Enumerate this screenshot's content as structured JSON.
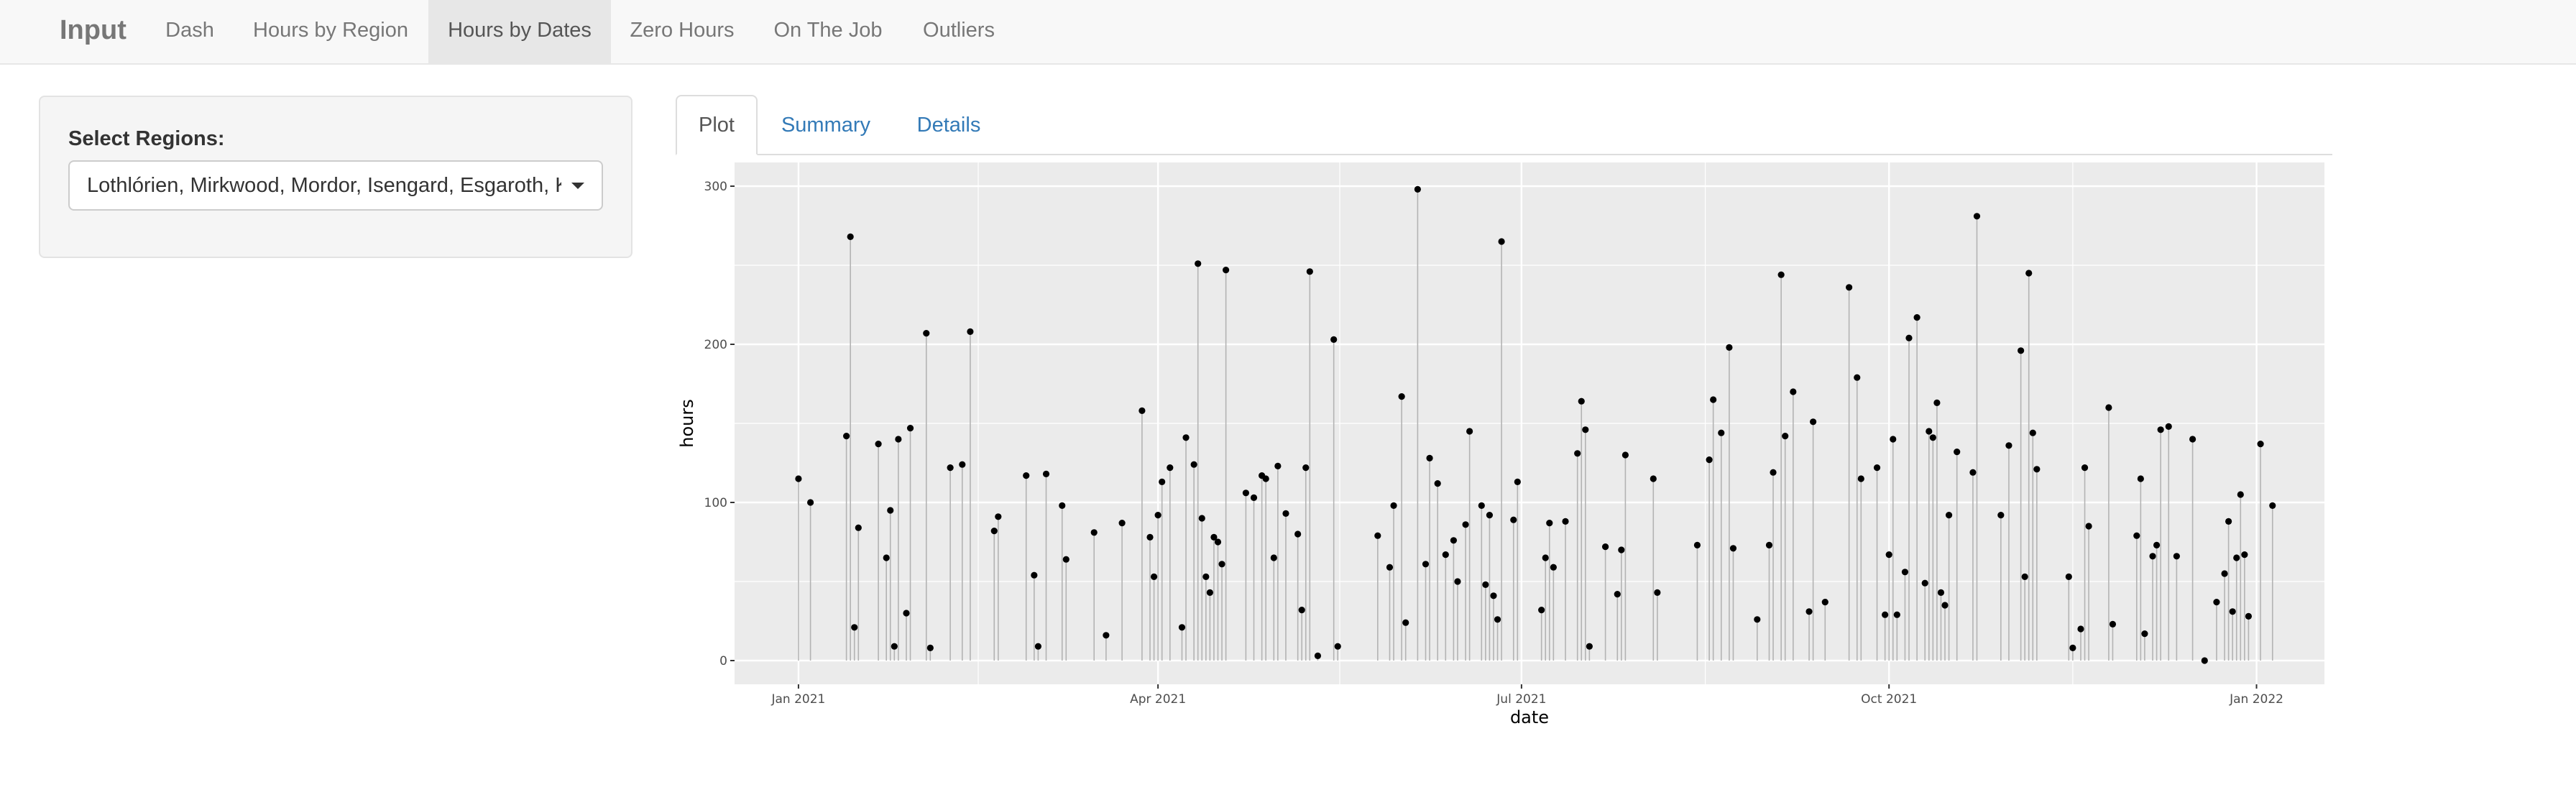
{
  "navbar": {
    "brand": "Input",
    "items": [
      {
        "label": "Dash",
        "active": false
      },
      {
        "label": "Hours by Region",
        "active": false
      },
      {
        "label": "Hours by Dates",
        "active": true
      },
      {
        "label": "Zero Hours",
        "active": false
      },
      {
        "label": "On The Job",
        "active": false
      },
      {
        "label": "Outliers",
        "active": false
      }
    ]
  },
  "sidebar": {
    "label": "Select Regions:",
    "selected": "Lothlórien, Mirkwood, Mordor, Isengard, Esgaroth, Kh"
  },
  "tabs": [
    {
      "label": "Plot",
      "active": true
    },
    {
      "label": "Summary",
      "active": false
    },
    {
      "label": "Details",
      "active": false
    }
  ],
  "colors": {
    "panel_bg": "#ebebeb",
    "grid": "#ffffff",
    "stem": "#b3b3b3",
    "point": "#000000",
    "link": "#337ab7"
  },
  "chart_data": {
    "type": "scatter",
    "style": "lollipop",
    "xlabel": "date",
    "ylabel": "hours",
    "xlim": [
      "2020-12-16",
      "2022-01-18"
    ],
    "ylim": [
      -15,
      315
    ],
    "xticks": [
      {
        "date": "2021-01-01",
        "label": "Jan 2021"
      },
      {
        "date": "2021-04-01",
        "label": "Apr 2021"
      },
      {
        "date": "2021-07-01",
        "label": "Jul 2021"
      },
      {
        "date": "2021-10-01",
        "label": "Oct 2021"
      },
      {
        "date": "2022-01-01",
        "label": "Jan 2022"
      }
    ],
    "yticks": [
      0,
      100,
      200,
      300
    ],
    "grid": true,
    "points": [
      [
        "2021-01-01",
        115
      ],
      [
        "2021-01-04",
        100
      ],
      [
        "2021-01-13",
        142
      ],
      [
        "2021-01-14",
        268
      ],
      [
        "2021-01-15",
        21
      ],
      [
        "2021-01-16",
        84
      ],
      [
        "2021-01-21",
        137
      ],
      [
        "2021-01-23",
        65
      ],
      [
        "2021-01-24",
        95
      ],
      [
        "2021-01-25",
        9
      ],
      [
        "2021-01-26",
        140
      ],
      [
        "2021-01-28",
        30
      ],
      [
        "2021-01-29",
        147
      ],
      [
        "2021-02-02",
        207
      ],
      [
        "2021-02-03",
        8
      ],
      [
        "2021-02-08",
        122
      ],
      [
        "2021-02-11",
        124
      ],
      [
        "2021-02-13",
        208
      ],
      [
        "2021-02-19",
        82
      ],
      [
        "2021-02-20",
        91
      ],
      [
        "2021-02-27",
        117
      ],
      [
        "2021-03-01",
        54
      ],
      [
        "2021-03-02",
        9
      ],
      [
        "2021-03-04",
        118
      ],
      [
        "2021-03-08",
        98
      ],
      [
        "2021-03-09",
        64
      ],
      [
        "2021-03-16",
        81
      ],
      [
        "2021-03-19",
        16
      ],
      [
        "2021-03-23",
        87
      ],
      [
        "2021-03-28",
        158
      ],
      [
        "2021-03-30",
        78
      ],
      [
        "2021-03-31",
        53
      ],
      [
        "2021-04-01",
        92
      ],
      [
        "2021-04-02",
        113
      ],
      [
        "2021-04-04",
        122
      ],
      [
        "2021-04-07",
        21
      ],
      [
        "2021-04-08",
        141
      ],
      [
        "2021-04-10",
        124
      ],
      [
        "2021-04-11",
        251
      ],
      [
        "2021-04-12",
        90
      ],
      [
        "2021-04-13",
        53
      ],
      [
        "2021-04-14",
        43
      ],
      [
        "2021-04-15",
        78
      ],
      [
        "2021-04-16",
        75
      ],
      [
        "2021-04-17",
        61
      ],
      [
        "2021-04-18",
        247
      ],
      [
        "2021-04-23",
        106
      ],
      [
        "2021-04-25",
        103
      ],
      [
        "2021-04-27",
        117
      ],
      [
        "2021-04-28",
        115
      ],
      [
        "2021-04-30",
        65
      ],
      [
        "2021-05-01",
        123
      ],
      [
        "2021-05-03",
        93
      ],
      [
        "2021-05-06",
        80
      ],
      [
        "2021-05-07",
        32
      ],
      [
        "2021-05-08",
        122
      ],
      [
        "2021-05-09",
        246
      ],
      [
        "2021-05-11",
        3
      ],
      [
        "2021-05-15",
        203
      ],
      [
        "2021-05-16",
        9
      ],
      [
        "2021-05-26",
        79
      ],
      [
        "2021-05-29",
        59
      ],
      [
        "2021-05-30",
        98
      ],
      [
        "2021-06-01",
        167
      ],
      [
        "2021-06-02",
        24
      ],
      [
        "2021-06-05",
        298
      ],
      [
        "2021-06-07",
        61
      ],
      [
        "2021-06-08",
        128
      ],
      [
        "2021-06-10",
        112
      ],
      [
        "2021-06-12",
        67
      ],
      [
        "2021-06-14",
        76
      ],
      [
        "2021-06-15",
        50
      ],
      [
        "2021-06-17",
        86
      ],
      [
        "2021-06-18",
        145
      ],
      [
        "2021-06-21",
        98
      ],
      [
        "2021-06-22",
        48
      ],
      [
        "2021-06-23",
        92
      ],
      [
        "2021-06-24",
        41
      ],
      [
        "2021-06-25",
        26
      ],
      [
        "2021-06-26",
        265
      ],
      [
        "2021-06-29",
        89
      ],
      [
        "2021-06-30",
        113
      ],
      [
        "2021-07-06",
        32
      ],
      [
        "2021-07-07",
        65
      ],
      [
        "2021-07-08",
        87
      ],
      [
        "2021-07-09",
        59
      ],
      [
        "2021-07-12",
        88
      ],
      [
        "2021-07-15",
        131
      ],
      [
        "2021-07-16",
        164
      ],
      [
        "2021-07-17",
        146
      ],
      [
        "2021-07-18",
        9
      ],
      [
        "2021-07-22",
        72
      ],
      [
        "2021-07-25",
        42
      ],
      [
        "2021-07-26",
        70
      ],
      [
        "2021-07-27",
        130
      ],
      [
        "2021-08-03",
        115
      ],
      [
        "2021-08-04",
        43
      ],
      [
        "2021-08-14",
        73
      ],
      [
        "2021-08-17",
        127
      ],
      [
        "2021-08-18",
        165
      ],
      [
        "2021-08-20",
        144
      ],
      [
        "2021-08-22",
        198
      ],
      [
        "2021-08-23",
        71
      ],
      [
        "2021-08-29",
        26
      ],
      [
        "2021-09-01",
        73
      ],
      [
        "2021-09-02",
        119
      ],
      [
        "2021-09-04",
        244
      ],
      [
        "2021-09-05",
        142
      ],
      [
        "2021-09-07",
        170
      ],
      [
        "2021-09-11",
        31
      ],
      [
        "2021-09-12",
        151
      ],
      [
        "2021-09-15",
        37
      ],
      [
        "2021-09-21",
        236
      ],
      [
        "2021-09-23",
        179
      ],
      [
        "2021-09-24",
        115
      ],
      [
        "2021-09-28",
        122
      ],
      [
        "2021-09-30",
        29
      ],
      [
        "2021-10-01",
        67
      ],
      [
        "2021-10-02",
        140
      ],
      [
        "2021-10-03",
        29
      ],
      [
        "2021-10-05",
        56
      ],
      [
        "2021-10-06",
        204
      ],
      [
        "2021-10-08",
        217
      ],
      [
        "2021-10-10",
        49
      ],
      [
        "2021-10-11",
        145
      ],
      [
        "2021-10-12",
        141
      ],
      [
        "2021-10-13",
        163
      ],
      [
        "2021-10-14",
        43
      ],
      [
        "2021-10-15",
        35
      ],
      [
        "2021-10-16",
        92
      ],
      [
        "2021-10-18",
        132
      ],
      [
        "2021-10-22",
        119
      ],
      [
        "2021-10-23",
        281
      ],
      [
        "2021-10-29",
        92
      ],
      [
        "2021-10-31",
        136
      ],
      [
        "2021-11-03",
        196
      ],
      [
        "2021-11-04",
        53
      ],
      [
        "2021-11-05",
        245
      ],
      [
        "2021-11-06",
        144
      ],
      [
        "2021-11-07",
        121
      ],
      [
        "2021-11-15",
        53
      ],
      [
        "2021-11-16",
        8
      ],
      [
        "2021-11-18",
        20
      ],
      [
        "2021-11-19",
        122
      ],
      [
        "2021-11-20",
        85
      ],
      [
        "2021-11-25",
        160
      ],
      [
        "2021-11-26",
        23
      ],
      [
        "2021-12-02",
        79
      ],
      [
        "2021-12-03",
        115
      ],
      [
        "2021-12-04",
        17
      ],
      [
        "2021-12-06",
        66
      ],
      [
        "2021-12-07",
        73
      ],
      [
        "2021-12-08",
        146
      ],
      [
        "2021-12-10",
        148
      ],
      [
        "2021-12-12",
        66
      ],
      [
        "2021-12-16",
        140
      ],
      [
        "2021-12-19",
        0
      ],
      [
        "2021-12-22",
        37
      ],
      [
        "2021-12-24",
        55
      ],
      [
        "2021-12-25",
        88
      ],
      [
        "2021-12-26",
        31
      ],
      [
        "2021-12-27",
        65
      ],
      [
        "2021-12-28",
        105
      ],
      [
        "2021-12-29",
        67
      ],
      [
        "2021-12-30",
        28
      ],
      [
        "2022-01-02",
        137
      ],
      [
        "2022-01-05",
        98
      ]
    ]
  }
}
